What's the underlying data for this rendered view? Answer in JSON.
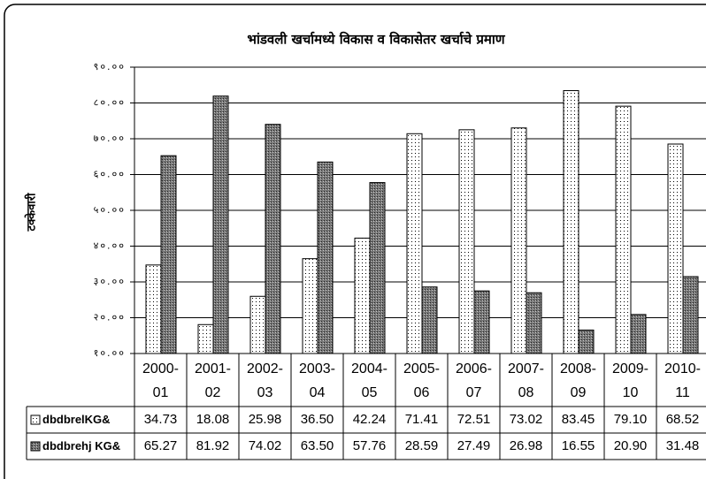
{
  "chart_data": {
    "type": "bar",
    "title": "भांडवली खर्चामध्ये विकास व विकासेतर खर्चाचे प्रमाण",
    "ylabel": "टक्केवारी",
    "categories": [
      "2000-01",
      "2001-02",
      "2002-03",
      "2003-04",
      "2004-05",
      "2005-06",
      "2006-07",
      "2007-08",
      "2008-09",
      "2009-10",
      "2010-11"
    ],
    "series": [
      {
        "name": "dbdbrelKG&",
        "color": "#ffffff",
        "values": [
          34.73,
          18.08,
          25.98,
          36.5,
          42.24,
          71.41,
          72.51,
          73.02,
          83.45,
          79.1,
          68.52
        ],
        "value_labels": [
          "34.73",
          "18.08",
          "25.98",
          "36.50",
          "42.24",
          "71.41",
          "72.51",
          "73.02",
          "83.45",
          "79.10",
          "68.52"
        ]
      },
      {
        "name": "dbdbrehj KG&",
        "color": "#808080",
        "values": [
          65.27,
          81.92,
          74.02,
          63.5,
          57.76,
          28.59,
          27.49,
          26.98,
          16.55,
          20.9,
          31.48
        ],
        "value_labels": [
          "65.27",
          "81.92",
          "74.02",
          "63.50",
          "57.76",
          "28.59",
          "27.49",
          "26.98",
          "16.55",
          "20.90",
          "31.48"
        ]
      }
    ],
    "ylim": [
      10,
      90
    ],
    "yticks": [
      {
        "value": 10,
        "label": "१०.००"
      },
      {
        "value": 20,
        "label": "२०.००"
      },
      {
        "value": 30,
        "label": "३०.००"
      },
      {
        "value": 40,
        "label": "४०.००"
      },
      {
        "value": 50,
        "label": "५०.००"
      },
      {
        "value": 60,
        "label": "६०.००"
      },
      {
        "value": 70,
        "label": "७०.००"
      },
      {
        "value": 80,
        "label": "८०.००"
      },
      {
        "value": 90,
        "label": "९०.००"
      }
    ],
    "grid": true
  }
}
